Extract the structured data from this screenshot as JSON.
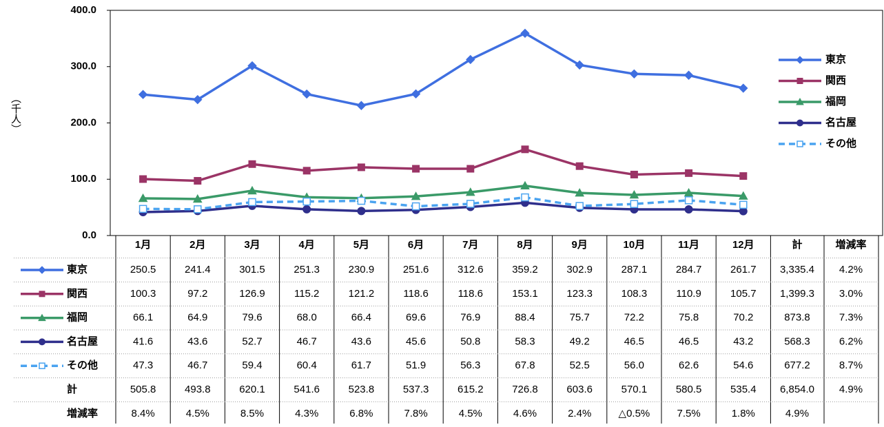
{
  "chart_data": {
    "type": "line",
    "y_label": "（千人）",
    "categories": [
      "1月",
      "2月",
      "3月",
      "4月",
      "5月",
      "6月",
      "7月",
      "8月",
      "9月",
      "10月",
      "11月",
      "12月"
    ],
    "ylim": [
      0,
      400
    ],
    "yticks": [
      {
        "value": 0,
        "label": "0.0"
      },
      {
        "value": 100,
        "label": "100.0"
      },
      {
        "value": 200,
        "label": "200.0"
      },
      {
        "value": 300,
        "label": "300.0"
      },
      {
        "value": 400,
        "label": "400.0"
      }
    ],
    "legend": "right",
    "series": [
      {
        "name": "東京",
        "color": "#3f6fe0",
        "marker": "diamond",
        "dashed": false,
        "values": [
          250.5,
          241.4,
          301.5,
          251.3,
          230.9,
          251.6,
          312.6,
          359.2,
          302.9,
          287.1,
          284.7,
          261.7
        ],
        "value_labels": [
          "250.5",
          "241.4",
          "301.5",
          "251.3",
          "230.9",
          "251.6",
          "312.6",
          "359.2",
          "302.9",
          "287.1",
          "284.7",
          "261.7"
        ]
      },
      {
        "name": "関西",
        "color": "#9b3466",
        "marker": "square",
        "dashed": false,
        "values": [
          100.3,
          97.2,
          126.9,
          115.2,
          121.2,
          118.6,
          118.6,
          153.1,
          123.3,
          108.3,
          110.9,
          105.7
        ],
        "value_labels": [
          "100.3",
          "97.2",
          "126.9",
          "115.2",
          "121.2",
          "118.6",
          "118.6",
          "153.1",
          "123.3",
          "108.3",
          "110.9",
          "105.7"
        ]
      },
      {
        "name": "福岡",
        "color": "#3a9a68",
        "marker": "triangle",
        "dashed": false,
        "values": [
          66.1,
          64.9,
          79.6,
          68,
          66.4,
          69.6,
          76.9,
          88.4,
          75.7,
          72.2,
          75.8,
          70.2
        ],
        "value_labels": [
          "66.1",
          "64.9",
          "79.6",
          "68.0",
          "66.4",
          "69.6",
          "76.9",
          "88.4",
          "75.7",
          "72.2",
          "75.8",
          "70.2"
        ]
      },
      {
        "name": "名古屋",
        "color": "#2f2f8c",
        "marker": "circle",
        "dashed": false,
        "values": [
          41.6,
          43.6,
          52.7,
          46.7,
          43.6,
          45.6,
          50.8,
          58.3,
          49.2,
          46.5,
          46.5,
          43.2
        ],
        "value_labels": [
          "41.6",
          "43.6",
          "52.7",
          "46.7",
          "43.6",
          "45.6",
          "50.8",
          "58.3",
          "49.2",
          "46.5",
          "46.5",
          "43.2"
        ]
      },
      {
        "name": "その他",
        "color": "#4aa3f0",
        "marker": "open-square",
        "dashed": true,
        "values": [
          47.3,
          46.7,
          59.4,
          60.4,
          61.7,
          51.9,
          56.3,
          67.8,
          52.5,
          56,
          62.6,
          54.6
        ],
        "value_labels": [
          "47.3",
          "46.7",
          "59.4",
          "60.4",
          "61.7",
          "51.9",
          "56.3",
          "67.8",
          "52.5",
          "56.0",
          "62.6",
          "54.6"
        ]
      }
    ]
  },
  "table": {
    "headers": [
      "計",
      "増減率"
    ],
    "rows": [
      [
        "3,335.4",
        "4.2%"
      ],
      [
        "1,399.3",
        "3.0%"
      ],
      [
        "873.8",
        "7.3%"
      ],
      [
        "568.3",
        "6.2%"
      ],
      [
        "677.2",
        "8.7%"
      ]
    ],
    "total_row": {
      "label": "計",
      "values": [
        "505.8",
        "493.8",
        "620.1",
        "541.6",
        "523.8",
        "537.3",
        "615.2",
        "726.8",
        "603.6",
        "570.1",
        "580.5",
        "535.4"
      ],
      "total": "6,854.0",
      "change": "4.9%"
    },
    "change_row": {
      "label": "増減率",
      "values": [
        "8.4%",
        "4.5%",
        "8.5%",
        "4.3%",
        "6.8%",
        "7.8%",
        "4.5%",
        "4.6%",
        "2.4%",
        "△0.5%",
        "7.5%",
        "1.8%"
      ],
      "total": "4.9%"
    }
  }
}
